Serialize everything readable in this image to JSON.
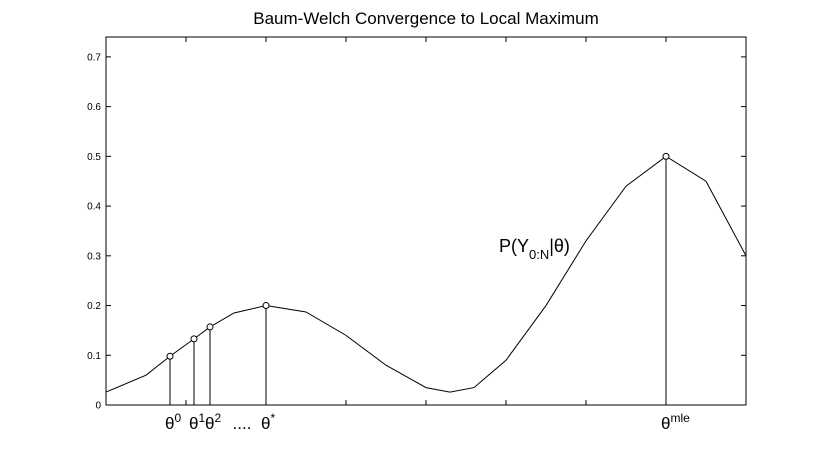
{
  "chart_data": {
    "type": "line",
    "title": "Baum-Welch Convergence to Local Maximum",
    "x": [
      0,
      0.5,
      0.8,
      1.1,
      1.3,
      1.6,
      2,
      2.5,
      3,
      3.5,
      4,
      4.3,
      4.6,
      5,
      5.5,
      6,
      6.5,
      7,
      7.5,
      8
    ],
    "values": [
      0.026,
      0.06,
      0.098,
      0.133,
      0.157,
      0.185,
      0.2,
      0.187,
      0.14,
      0.08,
      0.035,
      0.026,
      0.035,
      0.09,
      0.2,
      0.33,
      0.44,
      0.5,
      0.45,
      0.3
    ],
    "color": "#000000",
    "curve_label": {
      "text": "P(Y",
      "sub": "0:N",
      "tail": "|θ)"
    },
    "markers": {
      "x": [
        0.8,
        1.1,
        1.3,
        2,
        7
      ],
      "values": [
        0.098,
        0.133,
        0.157,
        0.2,
        0.5
      ],
      "labels": [
        {
          "text": "θ",
          "sup": "0"
        },
        {
          "text": "θ",
          "sup": "1"
        },
        {
          "text": "θ",
          "sup": "2"
        },
        {
          "text": "θ",
          "sup": "*"
        },
        {
          "text": "θ",
          "sup": "mle"
        }
      ]
    },
    "ellipsis": "....",
    "xlim": [
      0,
      8
    ],
    "xticks": [
      1,
      2,
      3,
      4,
      5,
      6,
      7
    ],
    "ylim": [
      0,
      0.74
    ],
    "yticks": [
      0,
      0.1,
      0.2,
      0.3,
      0.4,
      0.5,
      0.6,
      0.7
    ]
  }
}
